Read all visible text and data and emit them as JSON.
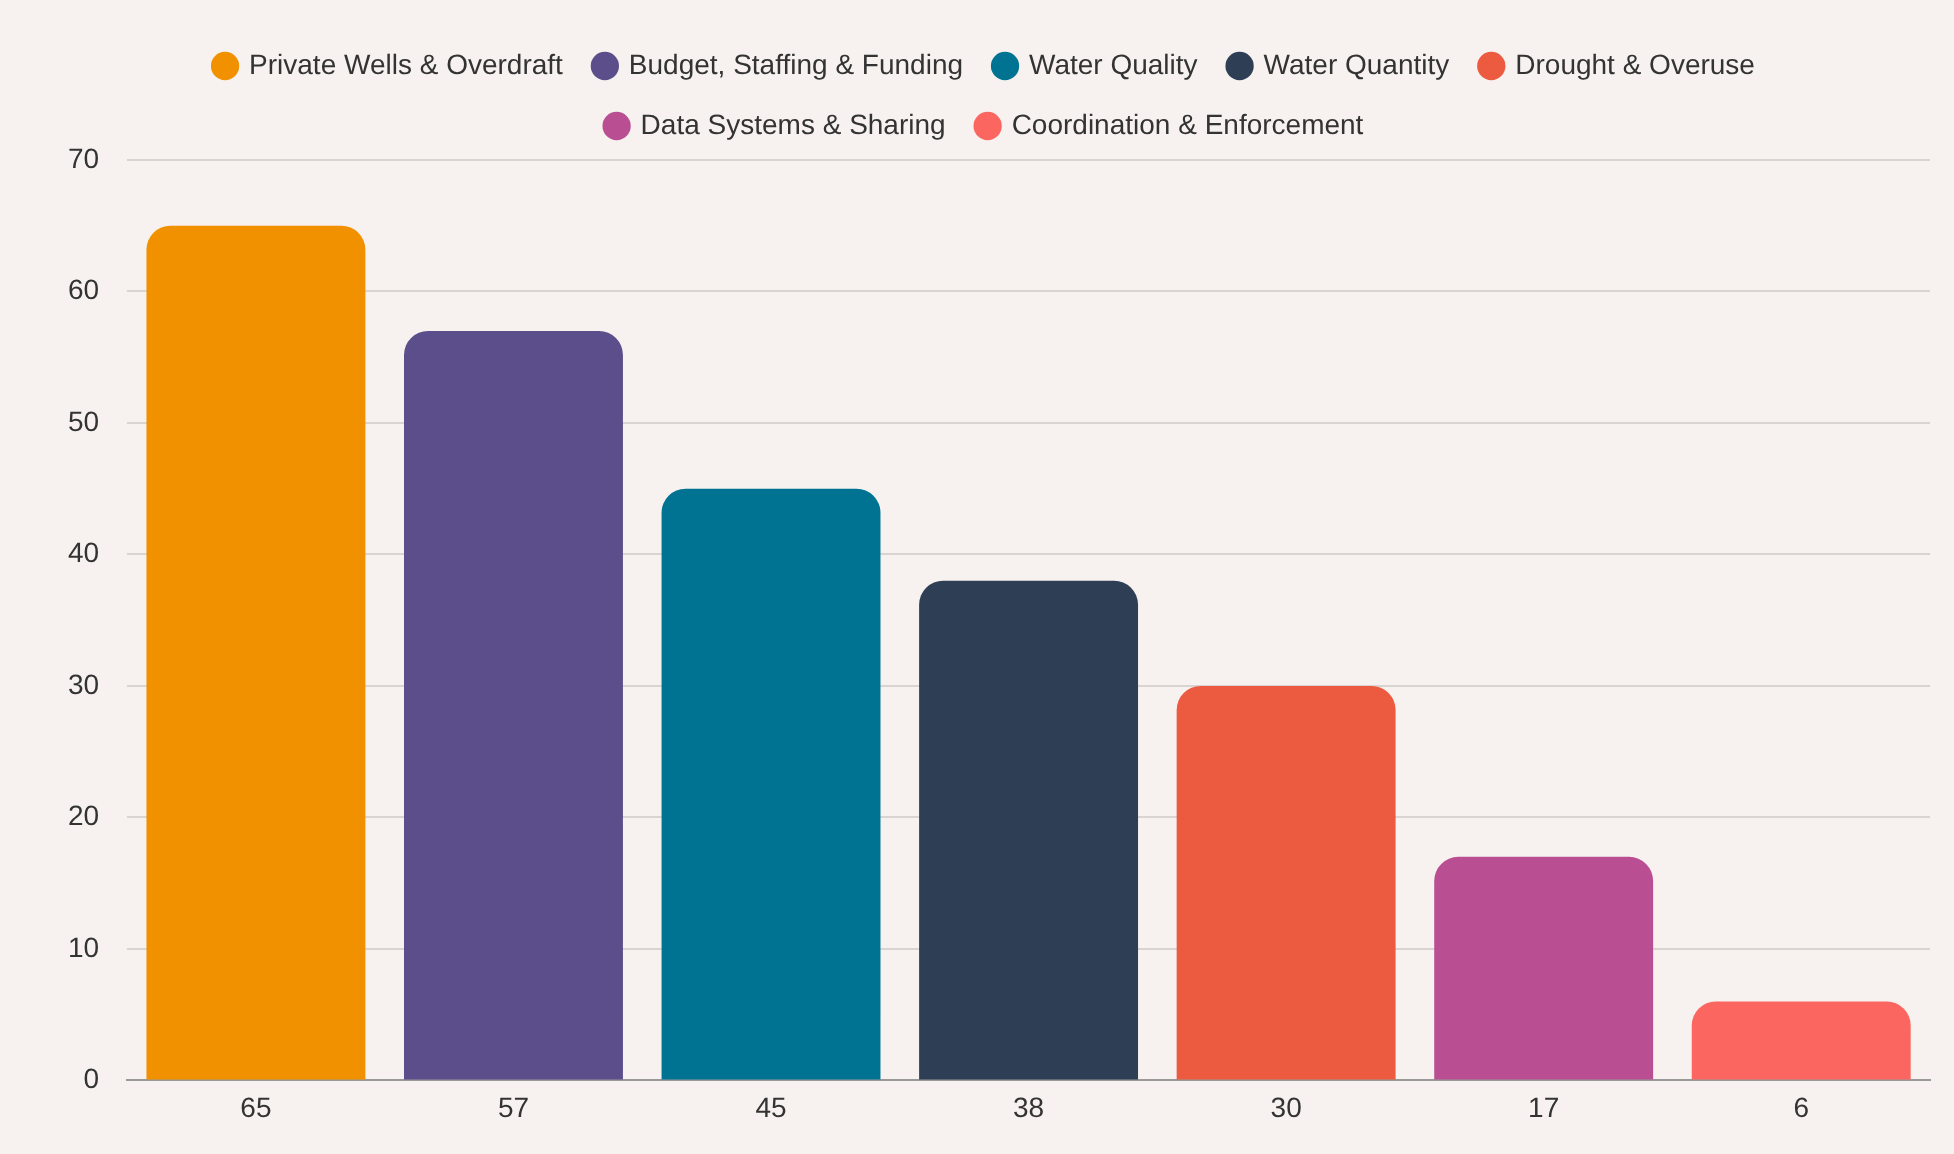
{
  "chart_data": {
    "type": "bar",
    "categories": [
      "65",
      "57",
      "45",
      "38",
      "30",
      "17",
      "6"
    ],
    "series": [
      {
        "name": "Private Wells & Overdraft",
        "color": "#f29100",
        "values": [
          65,
          null,
          null,
          null,
          null,
          null,
          null
        ]
      },
      {
        "name": "Budget, Staffing & Funding",
        "color": "#5b4e8a",
        "values": [
          null,
          57,
          null,
          null,
          null,
          null,
          null
        ]
      },
      {
        "name": "Water Quality",
        "color": "#007393",
        "values": [
          null,
          null,
          45,
          null,
          null,
          null,
          null
        ]
      },
      {
        "name": "Water Quantity",
        "color": "#2d3e55",
        "values": [
          null,
          null,
          null,
          38,
          null,
          null,
          null
        ]
      },
      {
        "name": "Drought & Overuse",
        "color": "#ec5a3f",
        "values": [
          null,
          null,
          null,
          null,
          30,
          null,
          null
        ]
      },
      {
        "name": "Data Systems & Sharing",
        "color": "#b94f92",
        "values": [
          null,
          null,
          null,
          null,
          null,
          17,
          null
        ]
      },
      {
        "name": "Coordination & Enforcement",
        "color": "#fc6660",
        "values": [
          null,
          null,
          null,
          null,
          null,
          null,
          6
        ]
      }
    ],
    "ylim": [
      0,
      70
    ],
    "yticks": [
      0,
      10,
      20,
      30,
      40,
      50,
      60,
      70
    ],
    "grid": "y",
    "legend": "top"
  }
}
